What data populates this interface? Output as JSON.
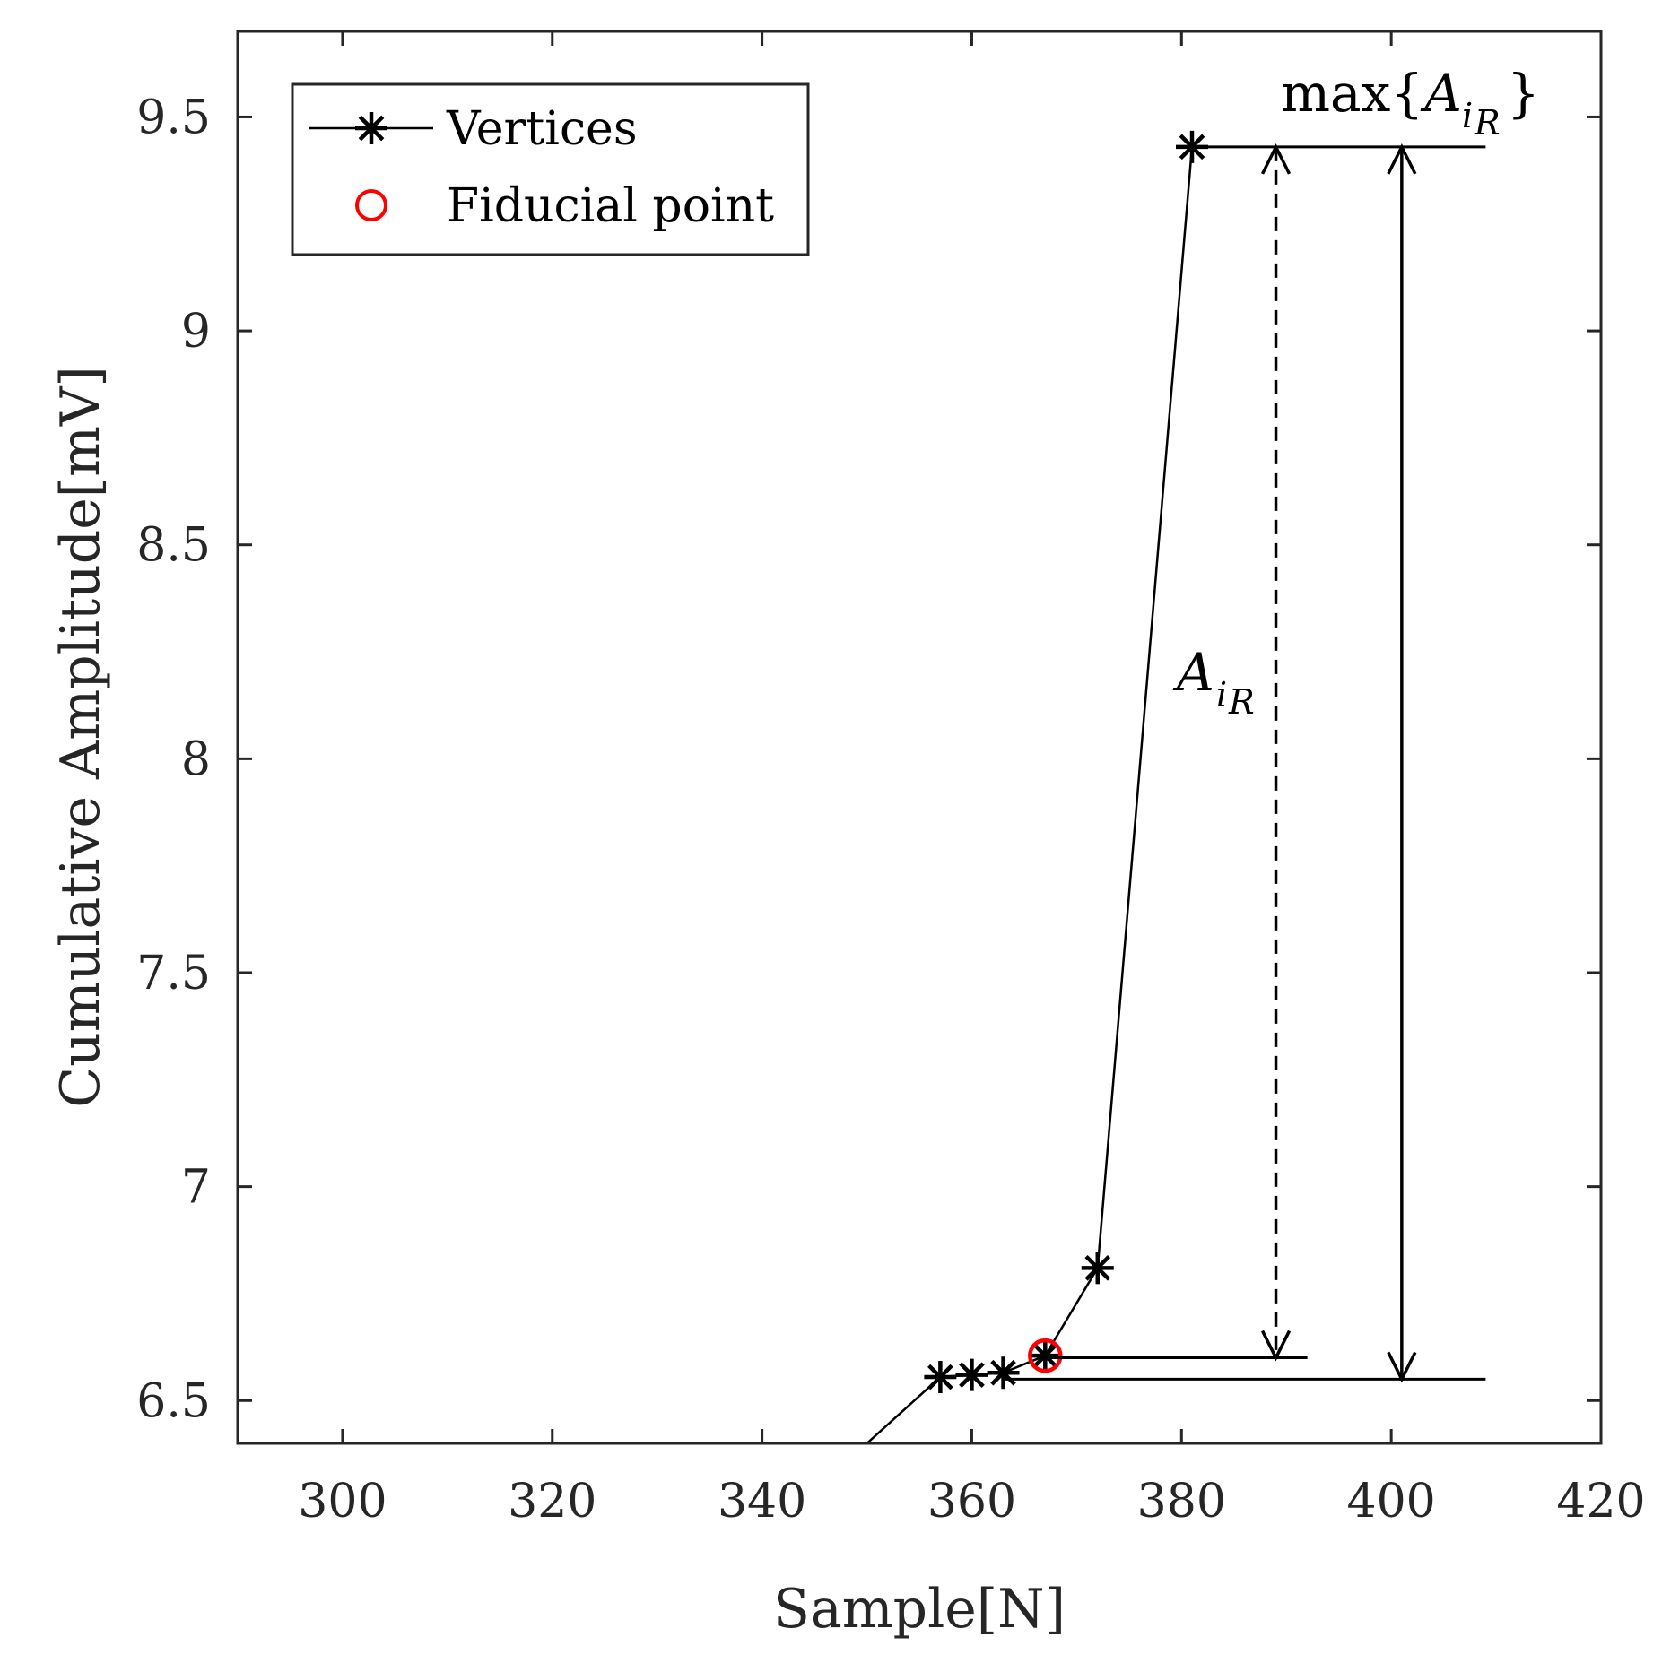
{
  "chart_data": {
    "type": "line",
    "xlabel": "Sample[N]",
    "ylabel": "Cumulative Amplitude[mV]",
    "xlim": [
      290,
      420
    ],
    "ylim": [
      6.4,
      9.7
    ],
    "xticks": [
      300,
      320,
      340,
      360,
      380,
      400,
      420
    ],
    "xtick_labels": [
      "300",
      "320",
      "340",
      "360",
      "380",
      "400",
      "420"
    ],
    "yticks": [
      6.5,
      7,
      7.5,
      8,
      8.5,
      9,
      9.5
    ],
    "ytick_labels": [
      "6.5",
      "7",
      "7.5",
      "8",
      "8.5",
      "9",
      "9.5"
    ],
    "grid": false,
    "legend_position": "top-left",
    "series": [
      {
        "name": "Vertices",
        "color": "#000000",
        "marker": "asterisk",
        "line_x": [
          350,
          357,
          360,
          363,
          367,
          372,
          381
        ],
        "line_y": [
          6.4,
          6.555,
          6.56,
          6.565,
          6.605,
          6.81,
          9.43
        ],
        "marker_x": [
          357,
          360,
          363,
          367,
          372,
          381
        ],
        "marker_y": [
          6.555,
          6.56,
          6.565,
          6.605,
          6.81,
          9.43
        ]
      },
      {
        "name": "Fiducial point",
        "color": "#ff0000",
        "marker": "circle",
        "x": [
          367
        ],
        "y": [
          6.605
        ]
      }
    ],
    "annotations": {
      "max_label": {
        "prefix": "max{",
        "var": "A",
        "sub": "i",
        "subsub": "R",
        "suffix": "}"
      },
      "a_label": {
        "var": "A",
        "sub": "i",
        "subsub": "R"
      },
      "ref_lines": [
        {
          "name": "max-level-line",
          "y": 9.43,
          "x_start": 381,
          "x_end": 409
        },
        {
          "name": "fiducial-level-line",
          "y": 6.6,
          "x_start": 367,
          "x_end": 392
        },
        {
          "name": "base-level-line",
          "y": 6.55,
          "x_start": 363,
          "x_end": 409
        }
      ],
      "arrows": [
        {
          "name": "dashed-amplitude-arrow",
          "x": 389,
          "y_from": 6.6,
          "y_to": 9.43,
          "dashed": true
        },
        {
          "name": "solid-max-arrow",
          "x": 401,
          "y_from": 6.55,
          "y_to": 9.43,
          "dashed": false
        }
      ]
    }
  }
}
